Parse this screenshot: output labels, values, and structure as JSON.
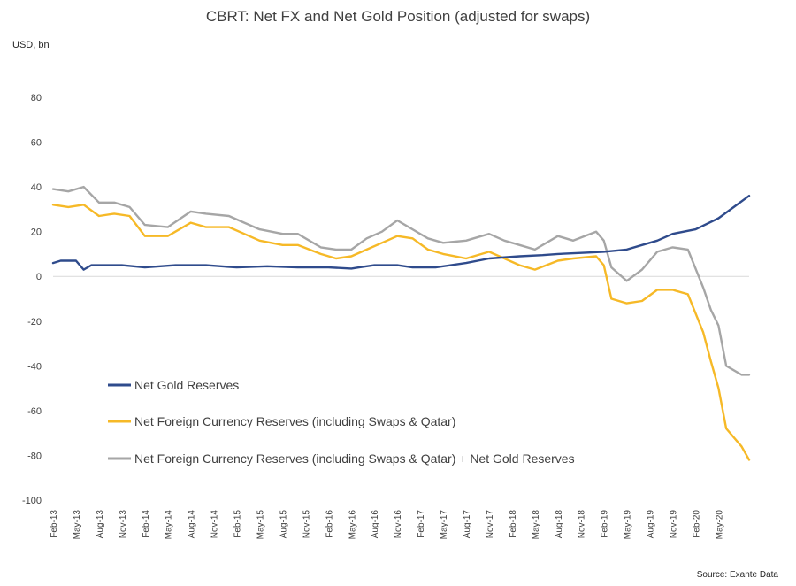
{
  "chart_data": {
    "type": "line",
    "title": "CBRT: Net FX and Net Gold Position (adjusted for swaps)",
    "ylabel": "USD, bn",
    "ylim": [
      -100,
      80
    ],
    "yticks": [
      "80",
      "60",
      "40",
      "20",
      "0",
      "-20",
      "-40",
      "-60",
      "-80",
      "-100"
    ],
    "xlim": [
      "2013-02",
      "2020-09"
    ],
    "xticks": [
      "Feb-13",
      "May-13",
      "Aug-13",
      "Nov-13",
      "Feb-14",
      "May-14",
      "Aug-14",
      "Nov-14",
      "Feb-15",
      "May-15",
      "Aug-15",
      "Nov-15",
      "Feb-16",
      "May-16",
      "Aug-16",
      "Nov-16",
      "Feb-17",
      "May-17",
      "Aug-17",
      "Nov-17",
      "Feb-18",
      "May-18",
      "Aug-18",
      "Nov-18",
      "Feb-19",
      "May-19",
      "Aug-19",
      "Nov-19",
      "Feb-20",
      "May-20"
    ],
    "grid": false,
    "legend_position": "lower-left",
    "source": "Source: Exante Data",
    "series": [
      {
        "name": "Net Gold Reserves",
        "color": "#2f4b8c",
        "points": [
          [
            "2013-02",
            6
          ],
          [
            "2013-03",
            7
          ],
          [
            "2013-05",
            7
          ],
          [
            "2013-06",
            3
          ],
          [
            "2013-07",
            5
          ],
          [
            "2013-11",
            5
          ],
          [
            "2014-02",
            4
          ],
          [
            "2014-06",
            5
          ],
          [
            "2014-10",
            5
          ],
          [
            "2015-02",
            4
          ],
          [
            "2015-06",
            4.5
          ],
          [
            "2015-10",
            4
          ],
          [
            "2016-02",
            4
          ],
          [
            "2016-05",
            3.5
          ],
          [
            "2016-06",
            4
          ],
          [
            "2016-08",
            5
          ],
          [
            "2016-11",
            5
          ],
          [
            "2017-01",
            4
          ],
          [
            "2017-04",
            4
          ],
          [
            "2017-08",
            6
          ],
          [
            "2017-11",
            8
          ],
          [
            "2018-03",
            9
          ],
          [
            "2018-06",
            9.5
          ],
          [
            "2018-08",
            10
          ],
          [
            "2018-11",
            10.5
          ],
          [
            "2019-02",
            11
          ],
          [
            "2019-05",
            12
          ],
          [
            "2019-07",
            14
          ],
          [
            "2019-09",
            16
          ],
          [
            "2019-11",
            19
          ],
          [
            "2020-02",
            21
          ],
          [
            "2020-05",
            26
          ],
          [
            "2020-07",
            31
          ],
          [
            "2020-09",
            36
          ]
        ]
      },
      {
        "name": "Net Foreign Currency Reserves (including Swaps & Qatar)",
        "color": "#f6b927",
        "points": [
          [
            "2013-02",
            32
          ],
          [
            "2013-04",
            31
          ],
          [
            "2013-06",
            32
          ],
          [
            "2013-08",
            27
          ],
          [
            "2013-10",
            28
          ],
          [
            "2013-12",
            27
          ],
          [
            "2014-02",
            18
          ],
          [
            "2014-05",
            18
          ],
          [
            "2014-08",
            24
          ],
          [
            "2014-10",
            22
          ],
          [
            "2015-01",
            22
          ],
          [
            "2015-03",
            19
          ],
          [
            "2015-05",
            16
          ],
          [
            "2015-08",
            14
          ],
          [
            "2015-10",
            14
          ],
          [
            "2016-01",
            10
          ],
          [
            "2016-03",
            8
          ],
          [
            "2016-05",
            9
          ],
          [
            "2016-07",
            12
          ],
          [
            "2016-09",
            15
          ],
          [
            "2016-11",
            18
          ],
          [
            "2017-01",
            17
          ],
          [
            "2017-03",
            12
          ],
          [
            "2017-05",
            10
          ],
          [
            "2017-08",
            8
          ],
          [
            "2017-11",
            11
          ],
          [
            "2018-01",
            8
          ],
          [
            "2018-03",
            5
          ],
          [
            "2018-05",
            3
          ],
          [
            "2018-08",
            7
          ],
          [
            "2018-10",
            8
          ],
          [
            "2019-01",
            9
          ],
          [
            "2019-02",
            5
          ],
          [
            "2019-03",
            -10
          ],
          [
            "2019-05",
            -12
          ],
          [
            "2019-07",
            -11
          ],
          [
            "2019-09",
            -6
          ],
          [
            "2019-11",
            -6
          ],
          [
            "2020-01",
            -8
          ],
          [
            "2020-03",
            -25
          ],
          [
            "2020-04",
            -38
          ],
          [
            "2020-05",
            -50
          ],
          [
            "2020-06",
            -68
          ],
          [
            "2020-08",
            -76
          ],
          [
            "2020-09",
            -82
          ]
        ]
      },
      {
        "name": "Net Foreign Currency Reserves (including Swaps & Qatar) + Net Gold Reserves",
        "color": "#a6a6a6",
        "points": [
          [
            "2013-02",
            39
          ],
          [
            "2013-04",
            38
          ],
          [
            "2013-06",
            40
          ],
          [
            "2013-08",
            33
          ],
          [
            "2013-10",
            33
          ],
          [
            "2013-12",
            31
          ],
          [
            "2014-02",
            23
          ],
          [
            "2014-05",
            22
          ],
          [
            "2014-08",
            29
          ],
          [
            "2014-10",
            28
          ],
          [
            "2015-01",
            27
          ],
          [
            "2015-03",
            24
          ],
          [
            "2015-05",
            21
          ],
          [
            "2015-08",
            19
          ],
          [
            "2015-10",
            19
          ],
          [
            "2016-01",
            13
          ],
          [
            "2016-03",
            12
          ],
          [
            "2016-05",
            12
          ],
          [
            "2016-07",
            17
          ],
          [
            "2016-09",
            20
          ],
          [
            "2016-11",
            25
          ],
          [
            "2017-01",
            21
          ],
          [
            "2017-03",
            17
          ],
          [
            "2017-05",
            15
          ],
          [
            "2017-08",
            16
          ],
          [
            "2017-11",
            19
          ],
          [
            "2018-01",
            16
          ],
          [
            "2018-03",
            14
          ],
          [
            "2018-05",
            12
          ],
          [
            "2018-08",
            18
          ],
          [
            "2018-10",
            16
          ],
          [
            "2019-01",
            20
          ],
          [
            "2019-02",
            16
          ],
          [
            "2019-03",
            4
          ],
          [
            "2019-05",
            -2
          ],
          [
            "2019-07",
            3
          ],
          [
            "2019-09",
            11
          ],
          [
            "2019-11",
            13
          ],
          [
            "2020-01",
            12
          ],
          [
            "2020-03",
            -5
          ],
          [
            "2020-04",
            -15
          ],
          [
            "2020-05",
            -22
          ],
          [
            "2020-06",
            -40
          ],
          [
            "2020-08",
            -44
          ],
          [
            "2020-09",
            -44
          ]
        ]
      }
    ]
  }
}
